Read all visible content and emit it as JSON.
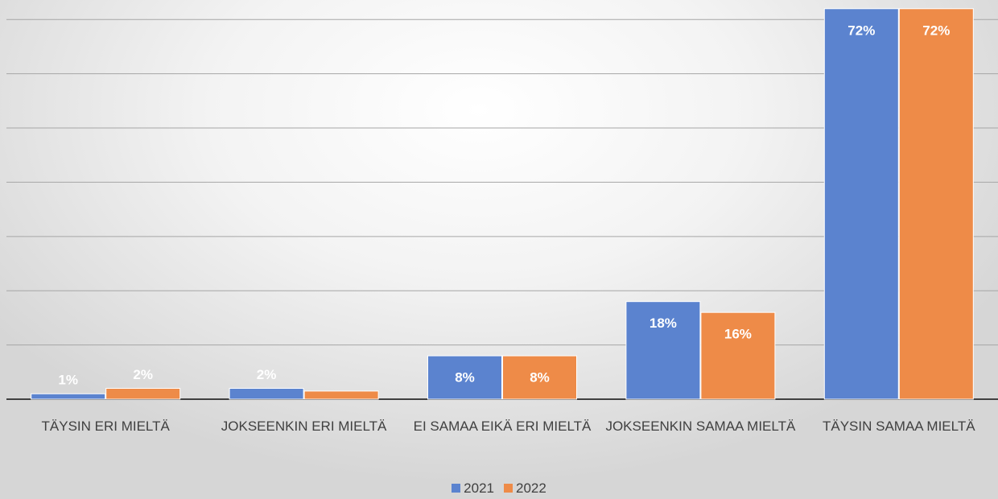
{
  "chart_data": {
    "type": "bar",
    "categories": [
      "TÄYSIN ERI MIELTÄ",
      "JOKSEENKIN ERI MIELTÄ",
      "EI SAMAA EIKÄ ERI MIELTÄ",
      "JOKSEENKIN SAMAA MIELTÄ",
      "TÄYSIN SAMAA MIELTÄ"
    ],
    "series": [
      {
        "name": "2021",
        "color": "#5b83cf",
        "values": [
          1,
          2,
          8,
          18,
          72
        ],
        "value_labels": [
          "1%",
          "2%",
          "8%",
          "18%",
          "72%"
        ]
      },
      {
        "name": "2022",
        "color": "#ee8b48",
        "values": [
          2,
          1.5,
          8,
          16,
          72
        ],
        "value_labels": [
          "2%",
          null,
          "8%",
          "16%",
          "72%"
        ]
      }
    ],
    "ylim": [
      0,
      73.6
    ],
    "yticks": [
      0,
      10,
      20,
      30,
      40,
      50,
      60,
      70
    ],
    "grid": true,
    "legend": "bottom"
  }
}
